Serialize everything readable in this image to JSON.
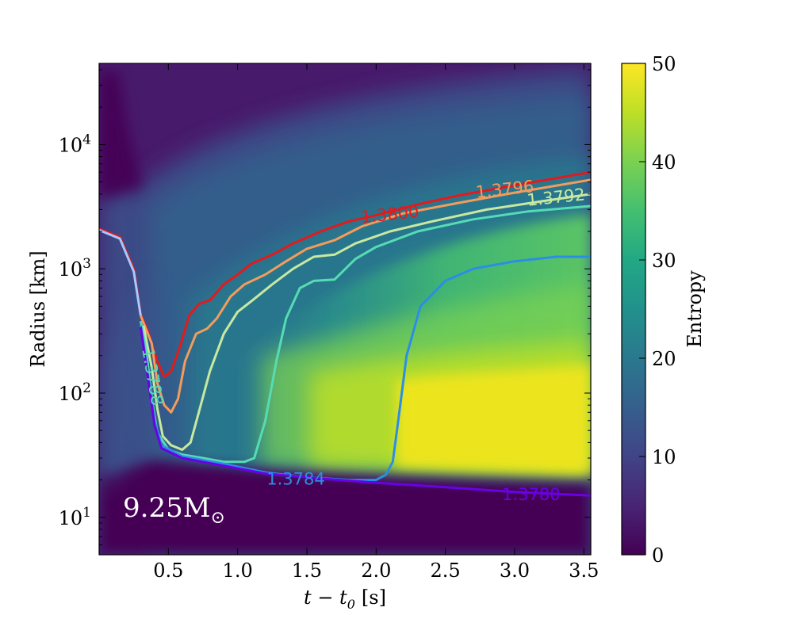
{
  "chart_data": {
    "type": "heatmap",
    "x_axis": {
      "label_main": "t − t",
      "label_sub": "0",
      "label_unit": "[s]",
      "range": [
        0.0,
        3.55
      ],
      "ticks": [
        0.5,
        1.0,
        1.5,
        2.0,
        2.5,
        3.0,
        3.5
      ],
      "tick_labels": [
        "0.5",
        "1.0",
        "1.5",
        "2.0",
        "2.5",
        "3.0",
        "3.5"
      ]
    },
    "y_axis": {
      "label": "Radius [km]",
      "scale": "log",
      "range": [
        5,
        45000
      ],
      "ticks": [
        10,
        100,
        1000,
        10000
      ],
      "tick_labels": [
        {
          "base": "10",
          "exp": "1"
        },
        {
          "base": "10",
          "exp": "2"
        },
        {
          "base": "10",
          "exp": "3"
        },
        {
          "base": "10",
          "exp": "4"
        }
      ]
    },
    "colorbar": {
      "label": "Entropy",
      "range": [
        0,
        50
      ],
      "ticks": [
        0,
        10,
        20,
        30,
        40,
        50
      ],
      "tick_labels": [
        "0",
        "10",
        "20",
        "30",
        "40",
        "50"
      ],
      "colormap": "viridis"
    },
    "annotation": {
      "text_main": "9.25M",
      "text_sub": "⊙"
    },
    "contours": [
      {
        "label": "1.3800",
        "color": "#e31a1c",
        "label_at": [
          2.1,
          2700
        ],
        "points": [
          [
            0.0,
            2100
          ],
          [
            0.15,
            1800
          ],
          [
            0.25,
            1000
          ],
          [
            0.3,
            430
          ],
          [
            0.35,
            320
          ],
          [
            0.42,
            180
          ],
          [
            0.47,
            135
          ],
          [
            0.52,
            150
          ],
          [
            0.58,
            230
          ],
          [
            0.65,
            420
          ],
          [
            0.72,
            520
          ],
          [
            0.8,
            560
          ],
          [
            0.9,
            750
          ],
          [
            1.0,
            900
          ],
          [
            1.1,
            1100
          ],
          [
            1.25,
            1300
          ],
          [
            1.4,
            1600
          ],
          [
            1.6,
            2000
          ],
          [
            1.8,
            2400
          ],
          [
            2.0,
            2700
          ],
          [
            2.3,
            3300
          ],
          [
            2.6,
            3900
          ],
          [
            3.0,
            4700
          ],
          [
            3.55,
            6000
          ]
        ]
      },
      {
        "label": "1.3796",
        "color": "#f39c5c",
        "label_at": [
          2.93,
          4300
        ],
        "points": [
          [
            0.3,
            420
          ],
          [
            0.38,
            250
          ],
          [
            0.42,
            120
          ],
          [
            0.47,
            80
          ],
          [
            0.52,
            70
          ],
          [
            0.57,
            90
          ],
          [
            0.62,
            180
          ],
          [
            0.7,
            300
          ],
          [
            0.78,
            330
          ],
          [
            0.85,
            400
          ],
          [
            0.95,
            600
          ],
          [
            1.05,
            750
          ],
          [
            1.2,
            900
          ],
          [
            1.35,
            1150
          ],
          [
            1.5,
            1450
          ],
          [
            1.7,
            1700
          ],
          [
            1.9,
            2200
          ],
          [
            2.2,
            2800
          ],
          [
            2.6,
            3400
          ],
          [
            3.0,
            4100
          ],
          [
            3.55,
            5200
          ]
        ]
      },
      {
        "label": "1.3792",
        "color": "#c7e9a0",
        "label_at": [
          3.3,
          3700
        ],
        "points": [
          [
            0.32,
            350
          ],
          [
            0.38,
            160
          ],
          [
            0.42,
            75
          ],
          [
            0.46,
            45
          ],
          [
            0.52,
            38
          ],
          [
            0.6,
            35
          ],
          [
            0.66,
            40
          ],
          [
            0.72,
            70
          ],
          [
            0.8,
            150
          ],
          [
            0.9,
            300
          ],
          [
            1.0,
            450
          ],
          [
            1.1,
            550
          ],
          [
            1.25,
            750
          ],
          [
            1.4,
            1000
          ],
          [
            1.55,
            1250
          ],
          [
            1.7,
            1300
          ],
          [
            1.85,
            1600
          ],
          [
            2.1,
            2000
          ],
          [
            2.4,
            2400
          ],
          [
            2.8,
            3000
          ],
          [
            3.2,
            3500
          ],
          [
            3.55,
            4000
          ]
        ]
      },
      {
        "label": "1.3788",
        "color": "#56dcb4",
        "label_at": [
          0.38,
          135
        ],
        "points": [
          [
            0.3,
            380
          ],
          [
            0.34,
            220
          ],
          [
            0.38,
            90
          ],
          [
            0.42,
            48
          ],
          [
            0.5,
            35
          ],
          [
            0.6,
            32
          ],
          [
            0.75,
            30
          ],
          [
            0.9,
            28
          ],
          [
            1.05,
            28
          ],
          [
            1.12,
            30
          ],
          [
            1.2,
            60
          ],
          [
            1.28,
            180
          ],
          [
            1.35,
            400
          ],
          [
            1.45,
            700
          ],
          [
            1.55,
            800
          ],
          [
            1.7,
            820
          ],
          [
            1.85,
            1200
          ],
          [
            2.0,
            1500
          ],
          [
            2.3,
            2000
          ],
          [
            2.7,
            2500
          ],
          [
            3.1,
            2900
          ],
          [
            3.55,
            3200
          ]
        ]
      },
      {
        "label": "1.3784",
        "color": "#2b8ee6",
        "label_at": [
          1.42,
          20
        ],
        "points": [
          [
            0.3,
            350
          ],
          [
            0.35,
            150
          ],
          [
            0.4,
            60
          ],
          [
            0.45,
            38
          ],
          [
            0.6,
            31
          ],
          [
            0.9,
            27
          ],
          [
            1.2,
            23
          ],
          [
            1.5,
            21
          ],
          [
            1.8,
            20
          ],
          [
            2.0,
            20
          ],
          [
            2.07,
            22
          ],
          [
            2.12,
            28
          ],
          [
            2.16,
            60
          ],
          [
            2.22,
            200
          ],
          [
            2.32,
            500
          ],
          [
            2.5,
            800
          ],
          [
            2.7,
            1000
          ],
          [
            3.0,
            1150
          ],
          [
            3.3,
            1250
          ],
          [
            3.55,
            1250
          ]
        ]
      },
      {
        "label": "1.3780",
        "color": "#6a00e6",
        "label_at": [
          3.12,
          15
        ],
        "points": [
          [
            0.3,
            340
          ],
          [
            0.35,
            140
          ],
          [
            0.4,
            55
          ],
          [
            0.45,
            36
          ],
          [
            0.6,
            30
          ],
          [
            0.9,
            26
          ],
          [
            1.2,
            22.5
          ],
          [
            1.6,
            20.5
          ],
          [
            2.0,
            19
          ],
          [
            2.5,
            17.5
          ],
          [
            3.0,
            16
          ],
          [
            3.55,
            15
          ]
        ]
      },
      {
        "label": "",
        "color": "#a8c8ff",
        "label_at": [
          0,
          0
        ],
        "points": [
          [
            0.0,
            2050
          ],
          [
            0.15,
            1750
          ],
          [
            0.25,
            950
          ],
          [
            0.3,
            420
          ]
        ]
      }
    ]
  }
}
